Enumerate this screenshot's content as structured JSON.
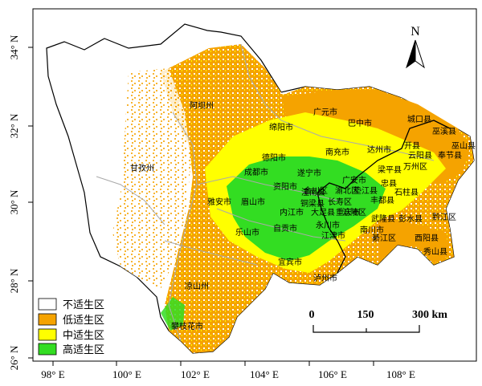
{
  "colors": {
    "not_suitable": "#ffffff",
    "low": "#f5a300",
    "medium": "#ffff00",
    "high": "#33dd22",
    "boundary": "#000000",
    "county_lines": "#aaaaaa",
    "frame": "#000000"
  },
  "axes": {
    "x_ticks": [
      "98° E",
      "100° E",
      "102° E",
      "104° E",
      "106° E",
      "108° E"
    ],
    "y_ticks": [
      "34° N",
      "32° N",
      "30° N",
      "28° N",
      "26° N"
    ]
  },
  "north_arrow": {
    "label": "N",
    "icon": "north-arrow-icon"
  },
  "scale_bar": {
    "labels": [
      "0",
      "150",
      "300 km"
    ]
  },
  "legend": {
    "items": [
      {
        "label": "不适生区",
        "color_key": "not_suitable"
      },
      {
        "label": "低适生区",
        "color_key": "low"
      },
      {
        "label": "中适生区",
        "color_key": "medium"
      },
      {
        "label": "高适生区",
        "color_key": "high"
      }
    ]
  },
  "places": [
    "阿坝州",
    "甘孜州",
    "凉山州",
    "攀枝花市",
    "雅安市",
    "眉山市",
    "乐山市",
    "成都市",
    "德阳市",
    "绵阳市",
    "广元市",
    "巴中市",
    "南充市",
    "达州市",
    "遂宁市",
    "资阳市",
    "内江市",
    "自贡市",
    "宜宾市",
    "泸州市",
    "城口县",
    "巫溪县",
    "巫山县",
    "开县",
    "云阳县",
    "奉节县",
    "万州区",
    "梁平县",
    "忠县",
    "石柱县",
    "丰都县",
    "涪陵区",
    "长寿区",
    "渝北区",
    "合川区",
    "潼南县",
    "铜梁县",
    "大足县",
    "重庆市",
    "永川市",
    "江津市",
    "南川市",
    "武隆县",
    "彭水县",
    "黔江区",
    "酉阳县",
    "秀山县",
    "綦江区",
    "广安市",
    "垫江县"
  ]
}
